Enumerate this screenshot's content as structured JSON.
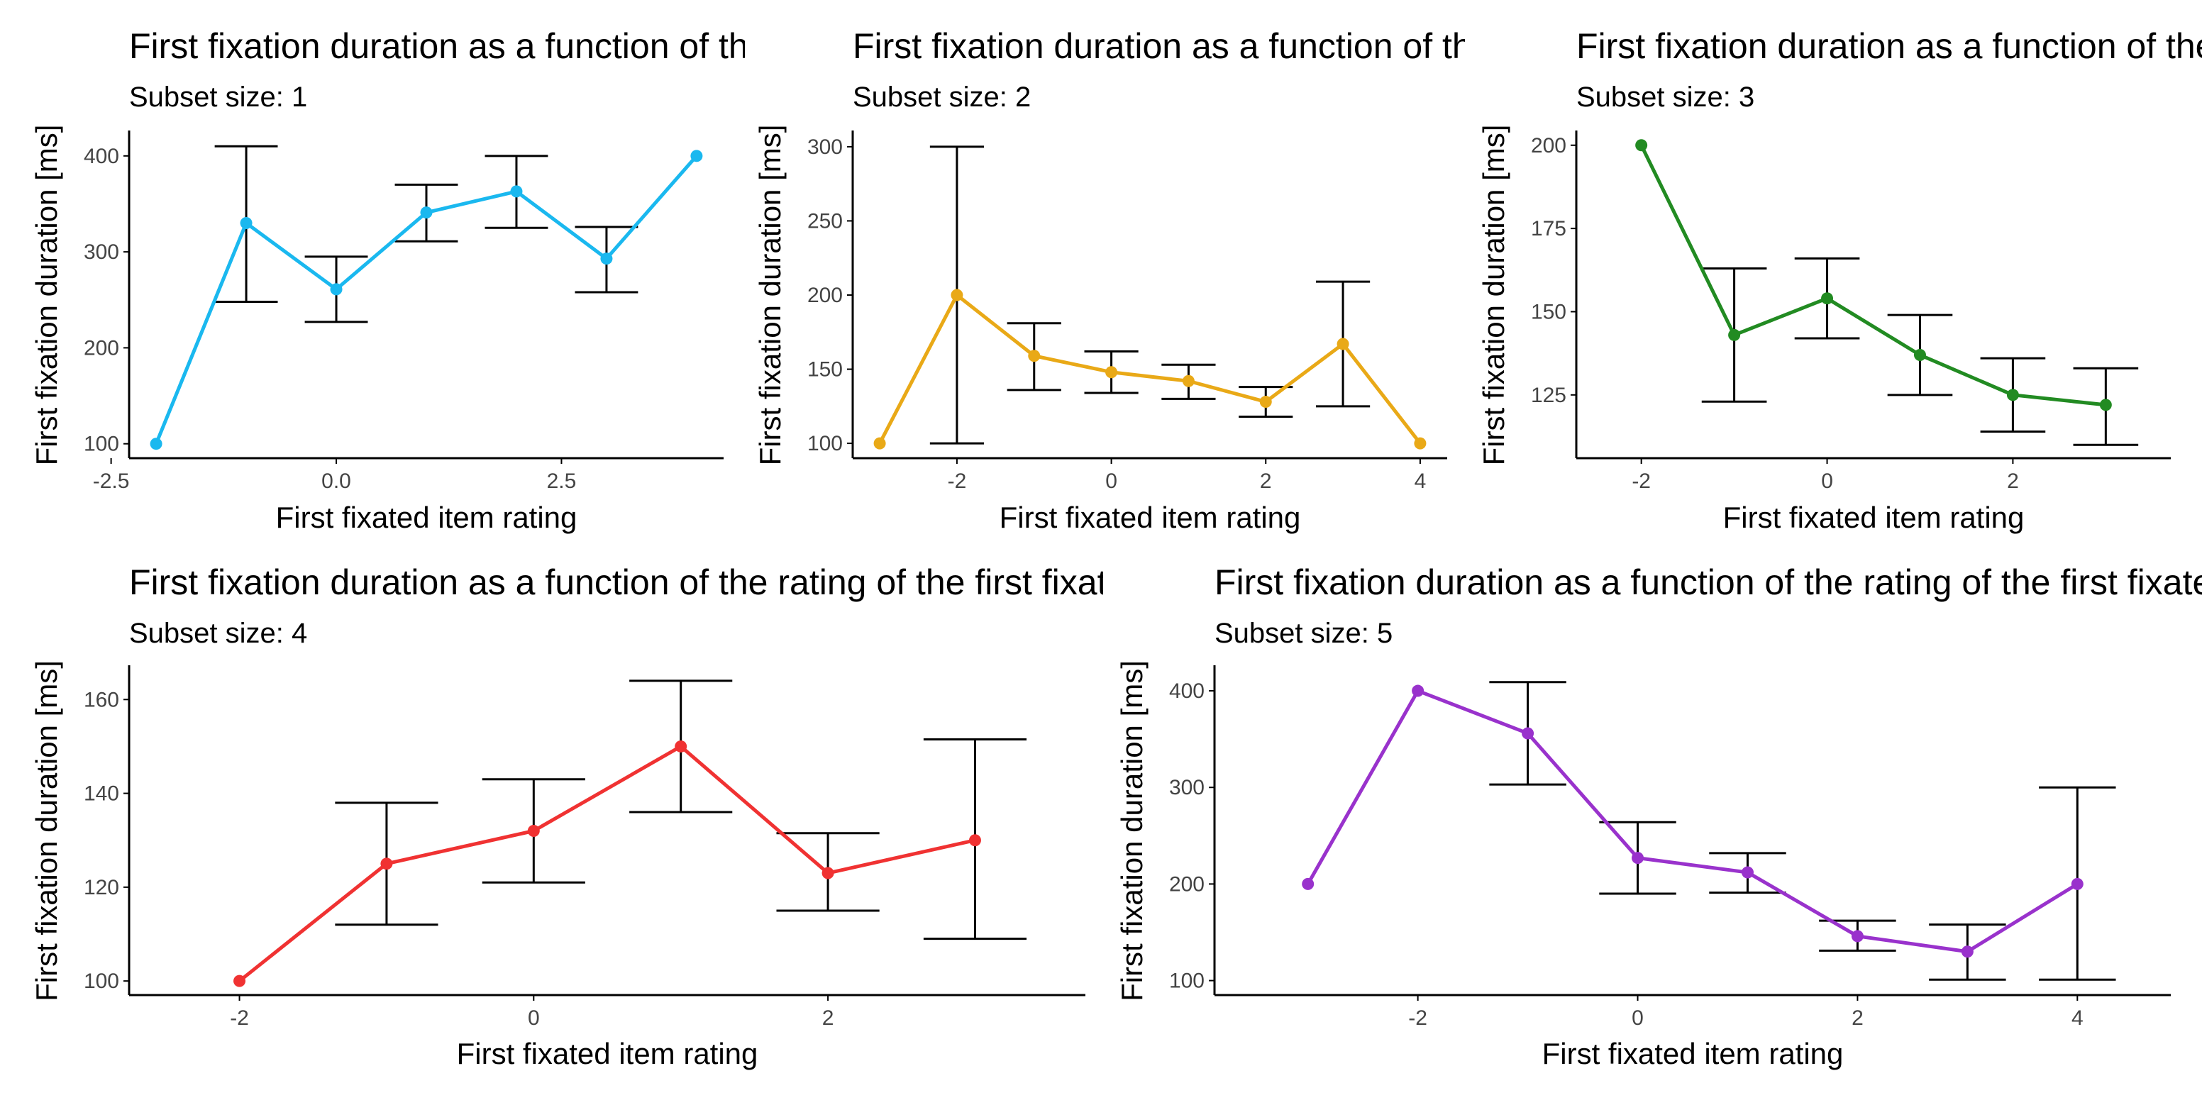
{
  "colors": {
    "background": "#ffffff",
    "axis": "#000000",
    "errorbar": "#000000",
    "tick_label": "#444444"
  },
  "chart_data": [
    {
      "type": "line",
      "title": "First fixation duration as a function of the rating of the first fixated item",
      "subtitle": "Subset size: 1",
      "xlabel": "First fixated item rating",
      "ylabel": "First fixation duration [ms]",
      "color": "#1ab8ef",
      "xlim": [
        -2.3,
        4.3
      ],
      "ylim": [
        85,
        425
      ],
      "x_ticks": [
        -2.5,
        0.0,
        2.5
      ],
      "x_tick_labels": [
        "-2.5",
        "0.0",
        "2.5"
      ],
      "y_ticks": [
        100,
        200,
        300,
        400
      ],
      "y_tick_labels": [
        "100",
        "200",
        "300",
        "400"
      ],
      "points": [
        {
          "x": -2,
          "y": 100
        },
        {
          "x": -1,
          "y": 330,
          "ymin": 248,
          "ymax": 410
        },
        {
          "x": 0,
          "y": 261,
          "ymin": 227,
          "ymax": 295
        },
        {
          "x": 1,
          "y": 341,
          "ymin": 311,
          "ymax": 370
        },
        {
          "x": 2,
          "y": 363,
          "ymin": 325,
          "ymax": 400
        },
        {
          "x": 3,
          "y": 293,
          "ymin": 258,
          "ymax": 326
        },
        {
          "x": 4,
          "y": 400
        }
      ]
    },
    {
      "type": "line",
      "title": "First fixation duration as a function of the rating of the first fixated item",
      "subtitle": "Subset size: 2",
      "xlabel": "First fixated item rating",
      "ylabel": "First fixation duration [ms]",
      "color": "#e9a917",
      "xlim": [
        -3.35,
        4.35
      ],
      "ylim": [
        90,
        310
      ],
      "x_ticks": [
        -2,
        0,
        2,
        4
      ],
      "x_tick_labels": [
        "-2",
        "0",
        "2",
        "4"
      ],
      "y_ticks": [
        100,
        150,
        200,
        250,
        300
      ],
      "y_tick_labels": [
        "100",
        "150",
        "200",
        "250",
        "300"
      ],
      "points": [
        {
          "x": -3,
          "y": 100
        },
        {
          "x": -2,
          "y": 200,
          "ymin": 100,
          "ymax": 300
        },
        {
          "x": -1,
          "y": 159,
          "ymin": 136,
          "ymax": 181
        },
        {
          "x": 0,
          "y": 148,
          "ymin": 134,
          "ymax": 162
        },
        {
          "x": 1,
          "y": 142,
          "ymin": 130,
          "ymax": 153
        },
        {
          "x": 2,
          "y": 128,
          "ymin": 118,
          "ymax": 138
        },
        {
          "x": 3,
          "y": 167,
          "ymin": 125,
          "ymax": 209
        },
        {
          "x": 4,
          "y": 100
        }
      ]
    },
    {
      "type": "line",
      "title": "First fixation duration as a function of the rating of the first fixated item",
      "subtitle": "Subset size: 3",
      "xlabel": "First fixated item rating",
      "ylabel": "First fixation duration [ms]",
      "color": "#228b22",
      "xlim": [
        -2.7,
        3.7
      ],
      "ylim": [
        106,
        204
      ],
      "x_ticks": [
        -2,
        0,
        2
      ],
      "x_tick_labels": [
        "-2",
        "0",
        "2"
      ],
      "y_ticks": [
        125,
        150,
        175,
        200
      ],
      "y_tick_labels": [
        "125",
        "150",
        "175",
        "200"
      ],
      "points": [
        {
          "x": -2,
          "y": 200
        },
        {
          "x": -1,
          "y": 143,
          "ymin": 123,
          "ymax": 163
        },
        {
          "x": 0,
          "y": 154,
          "ymin": 142,
          "ymax": 166
        },
        {
          "x": 1,
          "y": 137,
          "ymin": 125,
          "ymax": 149
        },
        {
          "x": 2,
          "y": 125,
          "ymin": 114,
          "ymax": 136
        },
        {
          "x": 3,
          "y": 122,
          "ymin": 110,
          "ymax": 133
        }
      ]
    },
    {
      "type": "line",
      "title": "First fixation duration as a function of the rating of the first fixated item",
      "subtitle": "Subset size: 4",
      "xlabel": "First fixated item rating",
      "ylabel": "First fixation duration [ms]",
      "color": "#f03232",
      "xlim": [
        -2.75,
        3.75
      ],
      "ylim": [
        97,
        167
      ],
      "x_ticks": [
        -2,
        0,
        2
      ],
      "x_tick_labels": [
        "-2",
        "0",
        "2"
      ],
      "y_ticks": [
        100,
        120,
        140,
        160
      ],
      "y_tick_labels": [
        "100",
        "120",
        "140",
        "160"
      ],
      "points": [
        {
          "x": -2,
          "y": 100
        },
        {
          "x": -1,
          "y": 125,
          "ymin": 112,
          "ymax": 138
        },
        {
          "x": 0,
          "y": 132,
          "ymin": 121,
          "ymax": 143
        },
        {
          "x": 1,
          "y": 150,
          "ymin": 136,
          "ymax": 164
        },
        {
          "x": 2,
          "y": 123,
          "ymin": 115,
          "ymax": 131.5
        },
        {
          "x": 3,
          "y": 130,
          "ymin": 109,
          "ymax": 151.5
        }
      ]
    },
    {
      "type": "line",
      "title": "First fixation duration as a function of the rating of the first fixated item",
      "subtitle": "Subset size: 5",
      "xlabel": "First fixated item rating",
      "ylabel": "First fixation duration [ms]",
      "color": "#9932cc",
      "xlim": [
        -3.85,
        4.85
      ],
      "ylim": [
        85,
        425
      ],
      "x_ticks": [
        -2,
        0,
        2,
        4
      ],
      "x_tick_labels": [
        "-2",
        "0",
        "2",
        "4"
      ],
      "y_ticks": [
        100,
        200,
        300,
        400
      ],
      "y_tick_labels": [
        "100",
        "200",
        "300",
        "400"
      ],
      "points": [
        {
          "x": -3,
          "y": 200
        },
        {
          "x": -2,
          "y": 400
        },
        {
          "x": -1,
          "y": 356,
          "ymin": 303,
          "ymax": 409
        },
        {
          "x": 0,
          "y": 227,
          "ymin": 190,
          "ymax": 264
        },
        {
          "x": 1,
          "y": 212,
          "ymin": 191,
          "ymax": 232
        },
        {
          "x": 2,
          "y": 146,
          "ymin": 131,
          "ymax": 162
        },
        {
          "x": 3,
          "y": 130,
          "ymin": 101,
          "ymax": 158
        },
        {
          "x": 4,
          "y": 200,
          "ymin": 101,
          "ymax": 300
        }
      ]
    }
  ]
}
